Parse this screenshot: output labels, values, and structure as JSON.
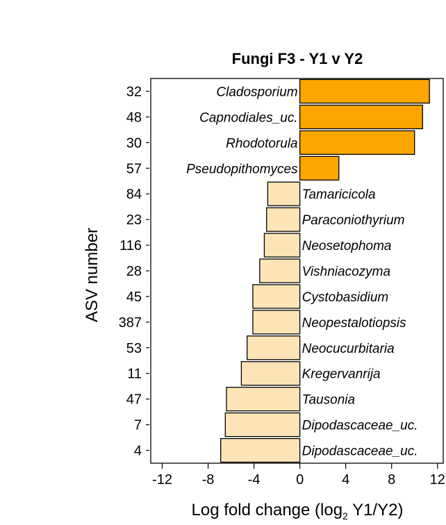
{
  "chart_data": {
    "type": "bar",
    "orientation": "horizontal",
    "title": "Fungi F3 - Y1 v Y2",
    "xlabel_main": "Log fold change (log",
    "xlabel_sub": "2",
    "xlabel_tail": " Y1/Y2)",
    "ylabel": "ASV number",
    "xlim": [
      -13,
      12.5
    ],
    "xticks": [
      -12,
      -8,
      -4,
      0,
      4,
      8,
      12
    ],
    "xtick_labels": [
      "-12",
      "-8",
      "-4",
      "0",
      "4",
      "8",
      "12"
    ],
    "grid": false,
    "colors": {
      "positive": "#FFA500",
      "negative": "#FCE4B6",
      "edge": "#000000"
    },
    "bars": [
      {
        "asv": "32",
        "taxon": "Cladosporium",
        "value": 11.3
      },
      {
        "asv": "48",
        "taxon": "Capnodiales_uc.",
        "value": 10.7
      },
      {
        "asv": "30",
        "taxon": "Rhodotorula",
        "value": 10.0
      },
      {
        "asv": "57",
        "taxon": "Pseudopithomyces",
        "value": 3.4
      },
      {
        "asv": "84",
        "taxon": "Tamaricicola",
        "value": -2.8
      },
      {
        "asv": "23",
        "taxon": "Paraconiothyrium",
        "value": -2.9
      },
      {
        "asv": "116",
        "taxon": "Neosetophoma",
        "value": -3.1
      },
      {
        "asv": "28",
        "taxon": "Vishniacozyma",
        "value": -3.5
      },
      {
        "asv": "45",
        "taxon": "Cystobasidium",
        "value": -4.1
      },
      {
        "asv": "387",
        "taxon": "Neopestalotiopsis",
        "value": -4.1
      },
      {
        "asv": "53",
        "taxon": "Neocucurbitaria",
        "value": -4.6
      },
      {
        "asv": "11",
        "taxon": "Kregervanrija",
        "value": -5.1
      },
      {
        "asv": "47",
        "taxon": "Tausonia",
        "value": -6.4
      },
      {
        "asv": "7",
        "taxon": "Dipodascaceae_uc.",
        "value": -6.5
      },
      {
        "asv": "4",
        "taxon": "Dipodascaceae_uc.",
        "value": -6.9
      }
    ]
  }
}
